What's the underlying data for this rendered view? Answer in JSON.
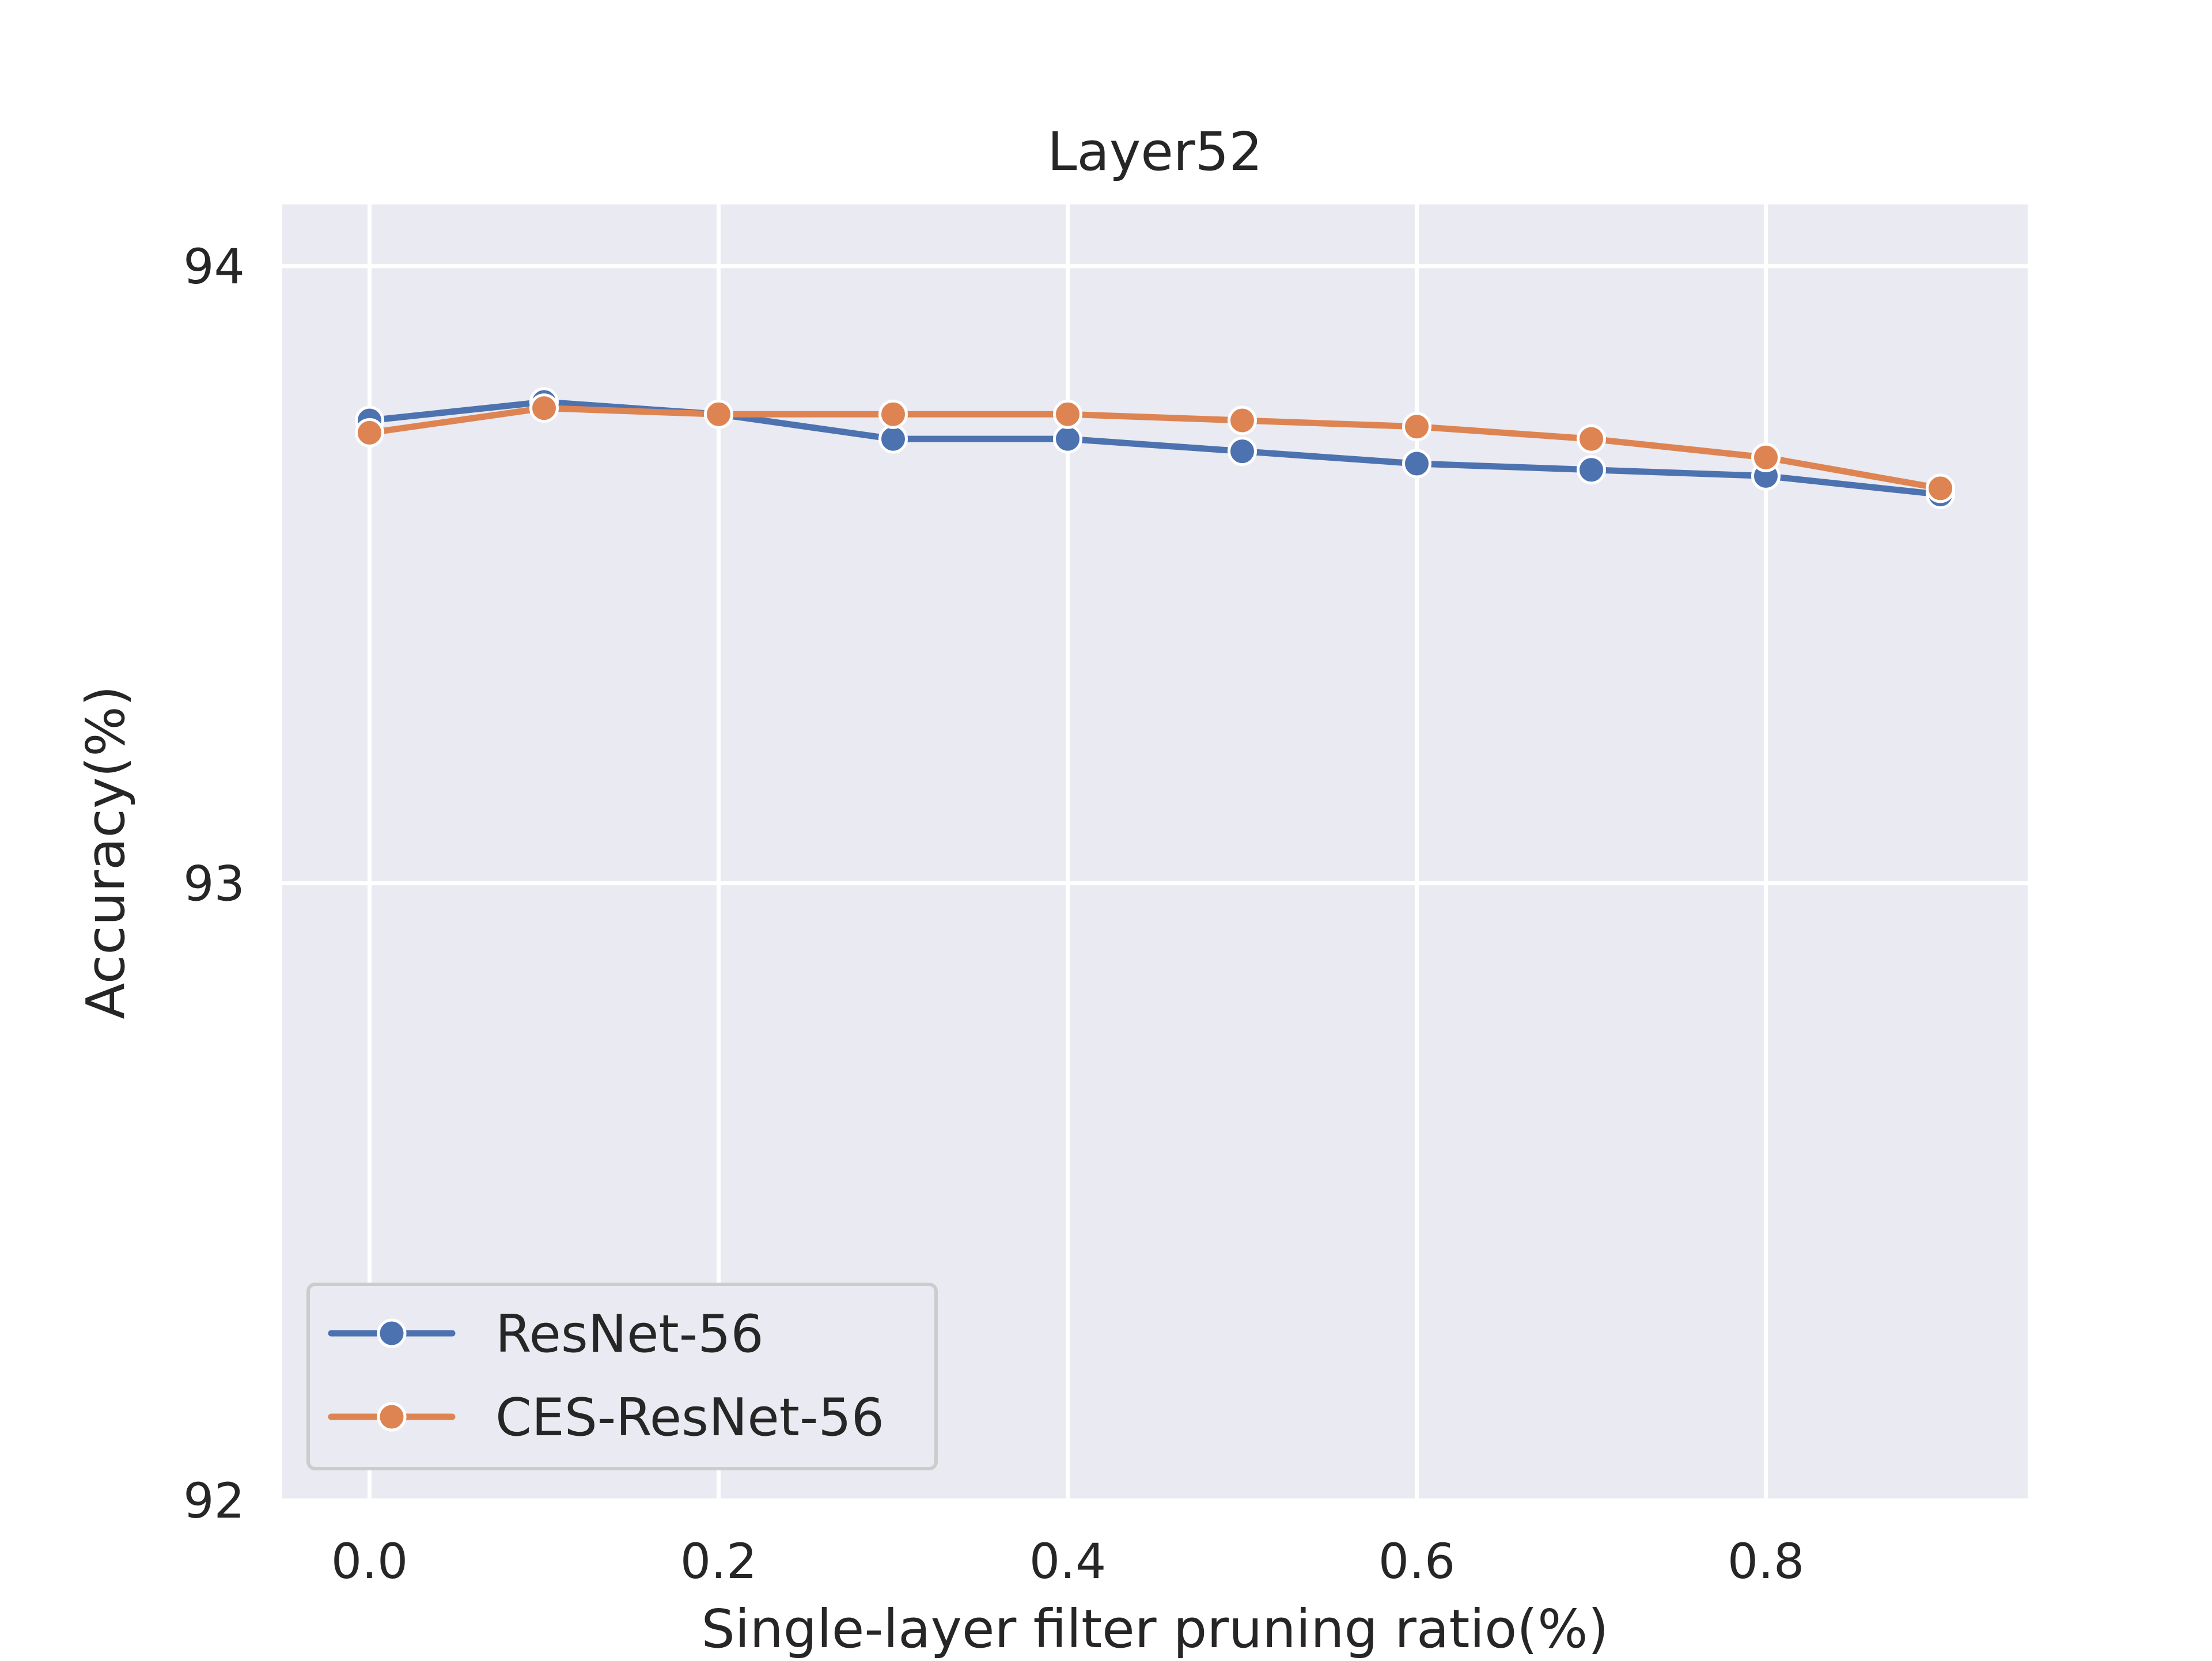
{
  "chart_data": {
    "type": "line",
    "title": "Layer52",
    "xlabel": "Single-layer filter pruning ratio(%)",
    "ylabel": "Accuracy(%)",
    "x": [
      0.0,
      0.1,
      0.2,
      0.3,
      0.4,
      0.5,
      0.6,
      0.7,
      0.8,
      0.9
    ],
    "xlim": [
      -0.05,
      0.95
    ],
    "ylim": [
      92.0,
      94.1
    ],
    "xticks": [
      0.0,
      0.2,
      0.4,
      0.6,
      0.8
    ],
    "xtick_labels": [
      "0.0",
      "0.2",
      "0.4",
      "0.6",
      "0.8"
    ],
    "yticks": [
      92,
      93,
      94
    ],
    "ytick_labels": [
      "92",
      "93",
      "94"
    ],
    "grid": true,
    "legend_position": "lower-left",
    "series": [
      {
        "name": "ResNet-56",
        "color": "#4c72b0",
        "marker": "circle",
        "values": [
          93.75,
          93.78,
          93.76,
          93.72,
          93.72,
          93.7,
          93.68,
          93.67,
          93.66,
          93.63
        ]
      },
      {
        "name": "CES-ResNet-56",
        "color": "#dd8452",
        "marker": "circle",
        "values": [
          93.73,
          93.77,
          93.76,
          93.76,
          93.76,
          93.75,
          93.74,
          93.72,
          93.69,
          93.64
        ]
      }
    ]
  },
  "colors": {
    "plot_background": "#eaeaf2",
    "grid": "#ffffff",
    "legend_border": "#cccccc"
  }
}
